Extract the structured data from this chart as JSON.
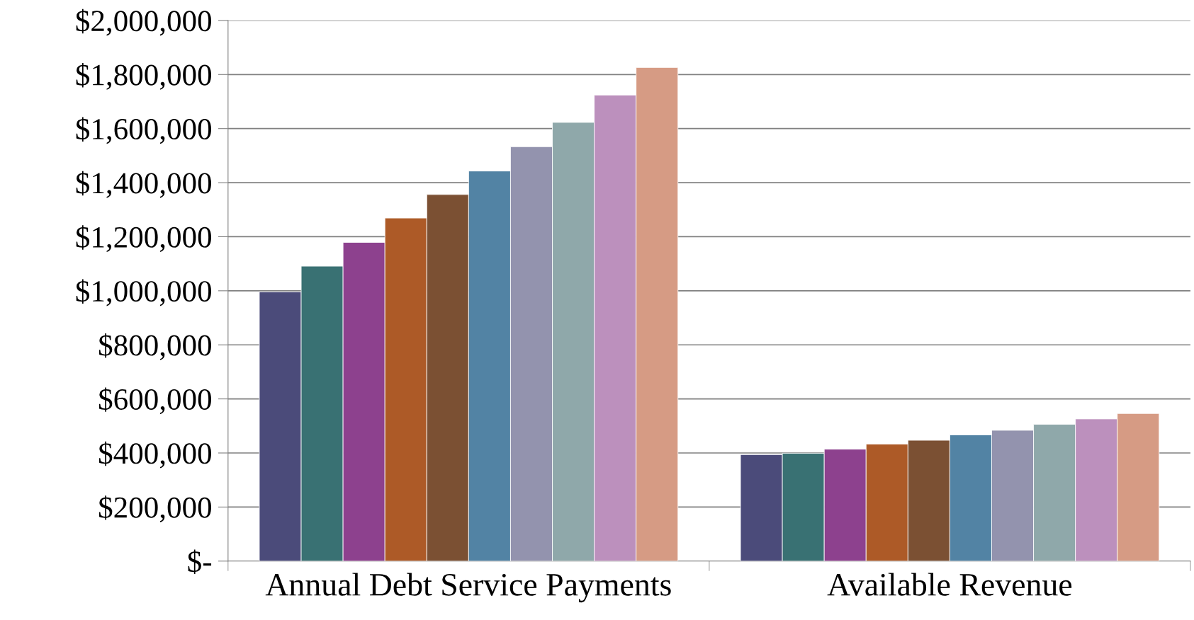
{
  "chart_data": {
    "type": "bar",
    "categories": [
      "Annual Debt Service Payments",
      "Available Revenue"
    ],
    "series": [
      {
        "color": "#4b4b7a",
        "values": [
          996000,
          394000
        ]
      },
      {
        "color": "#397173",
        "values": [
          1091000,
          399000
        ]
      },
      {
        "color": "#8d418e",
        "values": [
          1179000,
          414000
        ]
      },
      {
        "color": "#ad5a27",
        "values": [
          1269000,
          433000
        ]
      },
      {
        "color": "#7b5033",
        "values": [
          1356000,
          447000
        ]
      },
      {
        "color": "#5283a4",
        "values": [
          1443000,
          467000
        ]
      },
      {
        "color": "#9393ae",
        "values": [
          1533000,
          484000
        ]
      },
      {
        "color": "#8fa8aa",
        "values": [
          1623000,
          506000
        ]
      },
      {
        "color": "#bc90bd",
        "values": [
          1724000,
          526000
        ]
      },
      {
        "color": "#d69b84",
        "values": [
          1826000,
          546000
        ]
      }
    ],
    "ylim": [
      0,
      2000000
    ],
    "yticks": [
      {
        "value": 0,
        "label": "$-"
      },
      {
        "value": 200000,
        "label": "$200,000"
      },
      {
        "value": 400000,
        "label": "$400,000"
      },
      {
        "value": 600000,
        "label": "$600,000"
      },
      {
        "value": 800000,
        "label": "$800,000"
      },
      {
        "value": 1000000,
        "label": "$1,000,000"
      },
      {
        "value": 1200000,
        "label": "$1,200,000"
      },
      {
        "value": 1400000,
        "label": "$1,400,000"
      },
      {
        "value": 1600000,
        "label": "$1,600,000"
      },
      {
        "value": 1800000,
        "label": "$1,800,000"
      },
      {
        "value": 2000000,
        "label": "$2,000,000"
      }
    ],
    "grid": "y"
  }
}
